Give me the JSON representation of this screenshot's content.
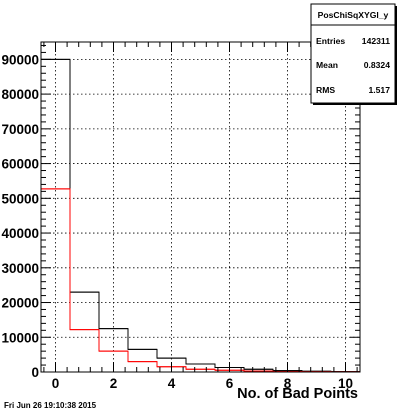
{
  "chart_data": {
    "type": "bar",
    "xlabel": "No. of Bad Points",
    "ylabel": "",
    "xlim": [
      -0.5,
      10.5
    ],
    "ylim": [
      0,
      95000
    ],
    "grid": true,
    "x_ticks": [
      0,
      2,
      4,
      6,
      8,
      10
    ],
    "y_ticks": [
      0,
      10000,
      20000,
      30000,
      40000,
      50000,
      60000,
      70000,
      80000,
      90000
    ],
    "bin_edges": [
      -0.5,
      0.5,
      1.5,
      2.5,
      3.5,
      4.5,
      5.5,
      6.5,
      7.5,
      8.5,
      9.5,
      10.5
    ],
    "series": [
      {
        "color": "#000000",
        "values": [
          90000,
          23000,
          12500,
          6500,
          4000,
          2300,
          1300,
          800,
          400,
          200,
          100
        ]
      },
      {
        "color": "#ff0000",
        "values": [
          52700,
          12200,
          6000,
          3000,
          1500,
          800,
          500,
          300,
          150,
          80,
          40
        ]
      }
    ],
    "stats_box": {
      "title": "PosChiSqXYGl_y",
      "rows": [
        {
          "label": "Entries",
          "value": "142311"
        },
        {
          "label": "Mean",
          "value": "0.8324"
        },
        {
          "label": "RMS",
          "value": "1.517"
        }
      ]
    }
  },
  "footer": {
    "timestamp": "Fri Jun 26 19:10:38 2015"
  }
}
